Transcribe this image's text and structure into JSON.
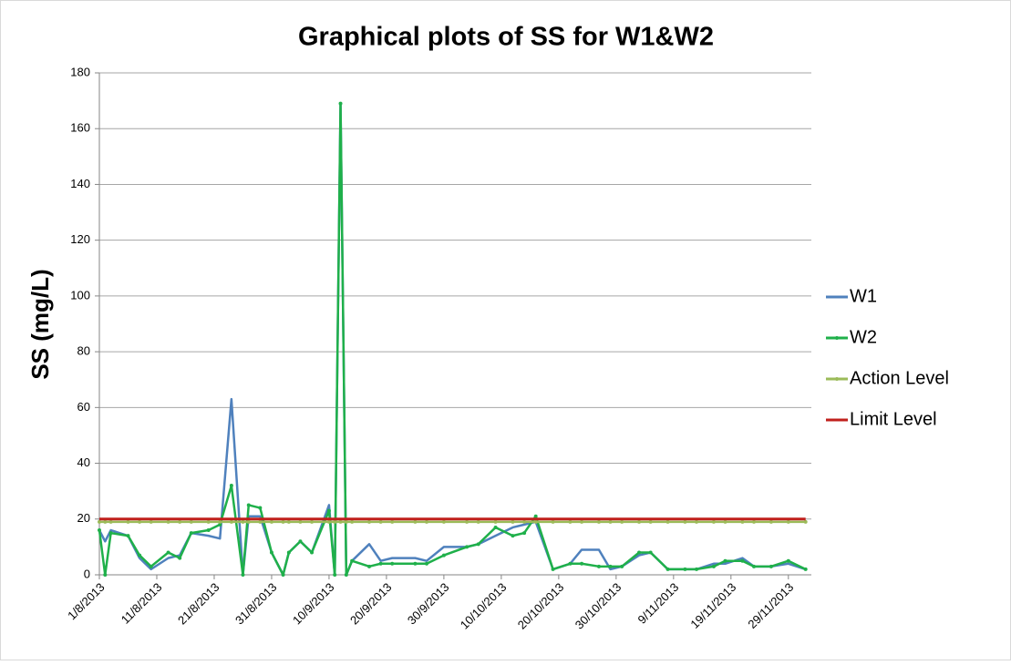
{
  "chart_data": {
    "type": "line",
    "title": "Graphical plots of SS for W1&W2",
    "y_label": "SS (mg/L)",
    "x": [
      "1/8/2013",
      "2/8/2013",
      "3/8/2013",
      "6/8/2013",
      "8/8/2013",
      "10/8/2013",
      "13/8/2013",
      "15/8/2013",
      "17/8/2013",
      "20/8/2013",
      "22/8/2013",
      "24/8/2013",
      "26/8/2013",
      "27/8/2013",
      "29/8/2013",
      "31/8/2013",
      "2/9/2013",
      "3/9/2013",
      "5/9/2013",
      "7/9/2013",
      "10/9/2013",
      "11/9/2013",
      "12/9/2013",
      "13/9/2013",
      "14/9/2013",
      "17/9/2013",
      "19/9/2013",
      "21/9/2013",
      "25/9/2013",
      "27/9/2013",
      "30/9/2013",
      "4/10/2013",
      "6/10/2013",
      "9/10/2013",
      "12/10/2013",
      "14/10/2013",
      "16/10/2013",
      "19/10/2013",
      "22/10/2013",
      "24/10/2013",
      "27/10/2013",
      "29/10/2013",
      "31/10/2013",
      "3/11/2013",
      "5/11/2013",
      "8/11/2013",
      "11/11/2013",
      "13/11/2013",
      "16/11/2013",
      "18/11/2013",
      "21/11/2013",
      "23/11/2013",
      "26/11/2013",
      "29/11/2013",
      "2/12/2013"
    ],
    "series": [
      {
        "name": "W1",
        "color": "#4f81bd",
        "markers": false,
        "values": [
          16,
          12,
          16,
          14,
          6,
          2,
          6,
          7,
          15,
          14,
          13,
          63,
          0,
          21,
          21,
          8,
          0,
          8,
          12,
          8,
          25,
          0,
          169,
          0,
          5,
          11,
          5,
          6,
          6,
          5,
          10,
          10,
          11,
          14,
          17,
          18,
          19,
          2,
          4,
          9,
          9,
          2,
          3,
          7,
          8,
          2,
          2,
          2,
          4,
          4,
          6,
          3,
          3,
          4,
          2
        ]
      },
      {
        "name": "W2",
        "color": "#1fb04a",
        "markers": true,
        "values": [
          16,
          0,
          15,
          14,
          7,
          3,
          8,
          6,
          15,
          16,
          18,
          32,
          0,
          25,
          24,
          8,
          0,
          8,
          12,
          8,
          23,
          0,
          169,
          0,
          5,
          3,
          4,
          4,
          4,
          4,
          7,
          10,
          11,
          17,
          14,
          15,
          21,
          2,
          4,
          4,
          3,
          3,
          3,
          8,
          8,
          2,
          2,
          2,
          3,
          5,
          5,
          3,
          3,
          5,
          2
        ]
      },
      {
        "name": "Action Level",
        "color": "#9bbb59",
        "markers": true,
        "values": [
          19,
          19,
          19,
          19,
          19,
          19,
          19,
          19,
          19,
          19,
          19,
          19,
          19,
          19,
          19,
          19,
          19,
          19,
          19,
          19,
          19,
          19,
          19,
          19,
          19,
          19,
          19,
          19,
          19,
          19,
          19,
          19,
          19,
          19,
          19,
          19,
          19,
          19,
          19,
          19,
          19,
          19,
          19,
          19,
          19,
          19,
          19,
          19,
          19,
          19,
          19,
          19,
          19,
          19,
          19
        ]
      },
      {
        "name": "Limit Level",
        "color": "#c0201c",
        "markers": false,
        "values": [
          20,
          20,
          20,
          20,
          20,
          20,
          20,
          20,
          20,
          20,
          20,
          20,
          20,
          20,
          20,
          20,
          20,
          20,
          20,
          20,
          20,
          20,
          20,
          20,
          20,
          20,
          20,
          20,
          20,
          20,
          20,
          20,
          20,
          20,
          20,
          20,
          20,
          20,
          20,
          20,
          20,
          20,
          20,
          20,
          20,
          20,
          20,
          20,
          20,
          20,
          20,
          20,
          20,
          20,
          20
        ]
      }
    ],
    "xlim": [
      "1/8/2013",
      "3/12/2013"
    ],
    "xticks": [
      "1/8/2013",
      "11/8/2013",
      "21/8/2013",
      "31/8/2013",
      "10/9/2013",
      "20/9/2013",
      "30/9/2013",
      "10/10/2013",
      "20/10/2013",
      "30/10/2013",
      "9/11/2013",
      "19/11/2013",
      "29/11/2013"
    ],
    "ylim": [
      0,
      180
    ],
    "yticks": [
      0,
      20,
      40,
      60,
      80,
      100,
      120,
      140,
      160,
      180
    ],
    "grid": true,
    "legend": "right"
  }
}
